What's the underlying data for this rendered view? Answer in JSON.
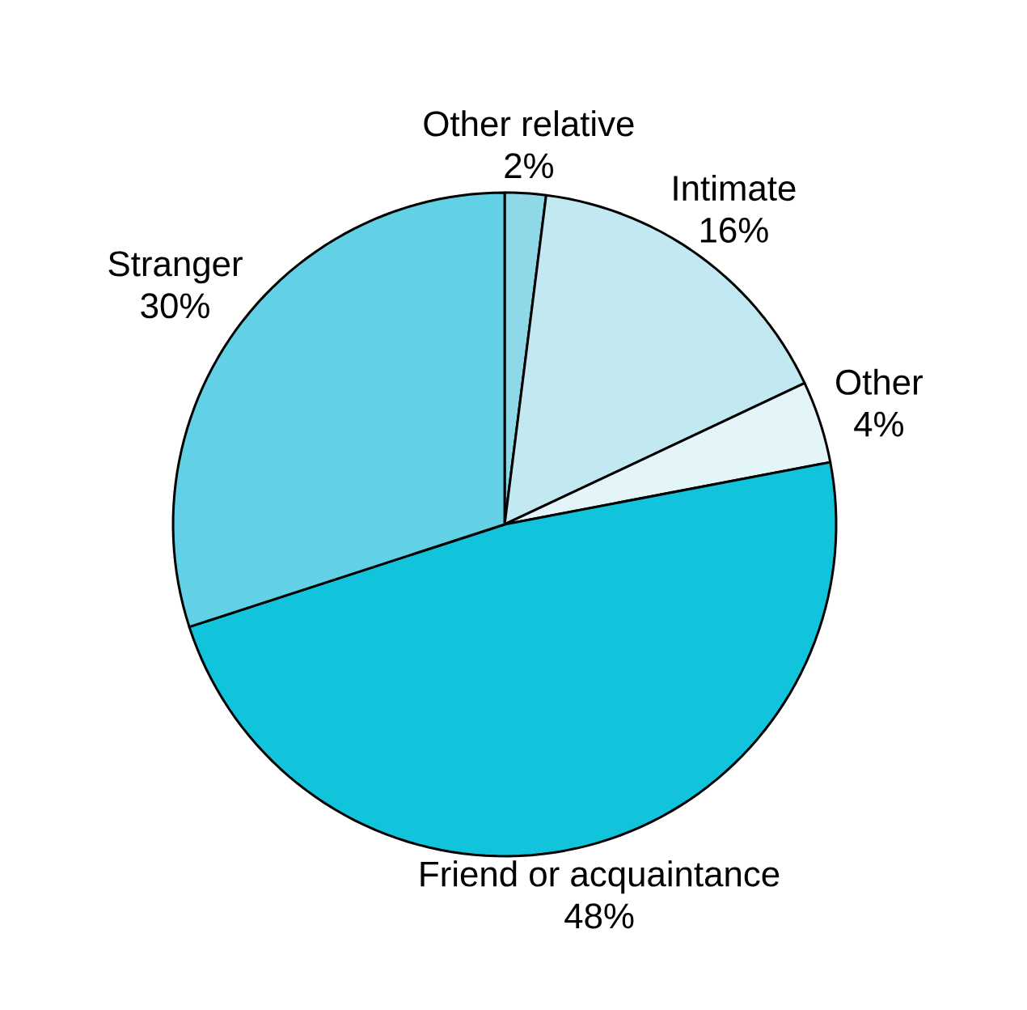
{
  "chart_data": {
    "type": "pie",
    "categories": [
      "Other relative",
      "Intimate",
      "Other",
      "Friend or acquaintance",
      "Stranger"
    ],
    "values": [
      2,
      16,
      4,
      48,
      30
    ],
    "colors": [
      "#8ed8e8",
      "#c2e9f1",
      "#e4f5f9",
      "#12c3dc",
      "#62d1e5"
    ],
    "value_labels": [
      "2%",
      "16%",
      "4%",
      "48%",
      "30%"
    ]
  }
}
